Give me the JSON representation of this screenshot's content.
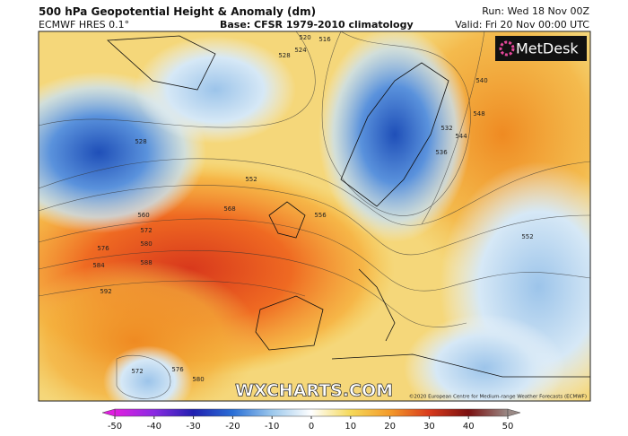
{
  "header": {
    "title": "500 hPa Geopotential Height & Anomaly (dm)",
    "model": "ECMWF HRES 0.1°",
    "base": "Base: CFSR 1979-2010 climatology",
    "run": "Run: Wed 18 Nov 00Z",
    "valid": "Valid: Fri 20 Nov 00:00 UTC"
  },
  "map": {
    "logo": "MetDesk",
    "watermark": "WXCHARTS.COM",
    "credit": "©2020 European Centre for Medium-range Weather Forecasts (ECMWF)",
    "contour_labels": [
      528,
      520,
      516,
      524,
      528,
      552,
      560,
      568,
      572,
      576,
      580,
      584,
      588,
      592,
      556,
      536,
      532,
      544,
      548,
      540,
      552,
      572,
      576,
      580
    ]
  },
  "colorbar": {
    "lim": [
      -50,
      50
    ],
    "ticks": [
      -50,
      -40,
      -30,
      -20,
      -10,
      0,
      10,
      20,
      30,
      40,
      50
    ],
    "colors": [
      "#e01ee0",
      "#8a2be2",
      "#2020b0",
      "#2a6fd6",
      "#9cc8ec",
      "#ffffff",
      "#f5d95a",
      "#f39a2a",
      "#d83a1c",
      "#7a1010",
      "#9a8a86"
    ]
  }
}
